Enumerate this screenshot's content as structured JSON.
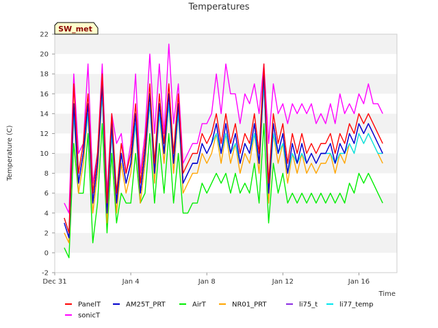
{
  "chart_data": {
    "type": "line",
    "title": "Temperatures",
    "xlabel": "Time",
    "ylabel": "Temperature (C)",
    "badge": "SW_met",
    "xlim": [
      "2023-12-31",
      "2024-01-18"
    ],
    "ylim": [
      -2,
      22
    ],
    "yticks": [
      -2,
      0,
      2,
      4,
      6,
      8,
      10,
      12,
      14,
      16,
      18,
      20,
      22
    ],
    "xticks": [
      {
        "date": "2023-12-31",
        "label": "Dec 31"
      },
      {
        "date": "2024-01-04",
        "label": "Jan 4"
      },
      {
        "date": "2024-01-08",
        "label": "Jan 8"
      },
      {
        "date": "2024-01-12",
        "label": "Jan 12"
      },
      {
        "date": "2024-01-16",
        "label": "Jan 16"
      }
    ],
    "grid": "horizontal bands",
    "legend_position": "bottom",
    "x": [
      "2023-12-31 12:00",
      "2023-12-31 18:00",
      "2024-01-01 00:00",
      "2024-01-01 06:00",
      "2024-01-01 12:00",
      "2024-01-01 18:00",
      "2024-01-02 00:00",
      "2024-01-02 06:00",
      "2024-01-02 12:00",
      "2024-01-02 18:00",
      "2024-01-03 00:00",
      "2024-01-03 06:00",
      "2024-01-03 12:00",
      "2024-01-03 18:00",
      "2024-01-04 00:00",
      "2024-01-04 06:00",
      "2024-01-04 12:00",
      "2024-01-04 18:00",
      "2024-01-05 00:00",
      "2024-01-05 06:00",
      "2024-01-05 12:00",
      "2024-01-05 18:00",
      "2024-01-06 00:00",
      "2024-01-06 06:00",
      "2024-01-06 12:00",
      "2024-01-06 18:00",
      "2024-01-07 00:00",
      "2024-01-07 06:00",
      "2024-01-07 12:00",
      "2024-01-07 18:00",
      "2024-01-08 00:00",
      "2024-01-08 06:00",
      "2024-01-08 12:00",
      "2024-01-08 18:00",
      "2024-01-09 00:00",
      "2024-01-09 06:00",
      "2024-01-09 12:00",
      "2024-01-09 18:00",
      "2024-01-10 00:00",
      "2024-01-10 06:00",
      "2024-01-10 12:00",
      "2024-01-10 18:00",
      "2024-01-11 00:00",
      "2024-01-11 06:00",
      "2024-01-11 12:00",
      "2024-01-11 18:00",
      "2024-01-12 00:00",
      "2024-01-12 06:00",
      "2024-01-12 12:00",
      "2024-01-12 18:00",
      "2024-01-13 00:00",
      "2024-01-13 06:00",
      "2024-01-13 12:00",
      "2024-01-13 18:00",
      "2024-01-14 00:00",
      "2024-01-14 06:00",
      "2024-01-14 12:00",
      "2024-01-14 18:00",
      "2024-01-15 00:00",
      "2024-01-15 06:00",
      "2024-01-15 12:00",
      "2024-01-15 18:00",
      "2024-01-16 00:00",
      "2024-01-16 06:00",
      "2024-01-16 12:00",
      "2024-01-16 18:00",
      "2024-01-17 00:00",
      "2024-01-17 06:00"
    ],
    "series": [
      {
        "name": "PanelT",
        "color": "#ff0000",
        "values": [
          3.5,
          2,
          17,
          8,
          11,
          16,
          6,
          10,
          18,
          5,
          14,
          6,
          11,
          8,
          10,
          15,
          7,
          11,
          17,
          9,
          16,
          11,
          17,
          10,
          16,
          8,
          9,
          10,
          10,
          12,
          11,
          12,
          14,
          11,
          14,
          11,
          13,
          10,
          12,
          11,
          14,
          10,
          19,
          7,
          14,
          11,
          13,
          9,
          12,
          10,
          12,
          10,
          11,
          10,
          11,
          11,
          12,
          10,
          12,
          11,
          13,
          12,
          14,
          13,
          14,
          13,
          12,
          11
        ]
      },
      {
        "name": "AM25T_PRT",
        "color": "#0000cc",
        "values": [
          3,
          1.5,
          15,
          7,
          10,
          15,
          5,
          9,
          17,
          4,
          13,
          5,
          10,
          7,
          9,
          14,
          6,
          10,
          16,
          8,
          15,
          10,
          16,
          9,
          15,
          7,
          8,
          9,
          9,
          11,
          10,
          11,
          13,
          10,
          13,
          10,
          12,
          9,
          11,
          10,
          13,
          9,
          18,
          6,
          13,
          10,
          12,
          8,
          11,
          9,
          11,
          9,
          10,
          9,
          10,
          10,
          11,
          9,
          11,
          10,
          12,
          11,
          13,
          12,
          13,
          12,
          11,
          10
        ]
      },
      {
        "name": "AirT",
        "color": "#00ee00",
        "values": [
          0.5,
          -0.5,
          11,
          6,
          6,
          12,
          1,
          5,
          13,
          2,
          10,
          3,
          6,
          5,
          5,
          10,
          5,
          6,
          12,
          5,
          11,
          6,
          12,
          5,
          10,
          4,
          4,
          5,
          5,
          7,
          6,
          7,
          8,
          7,
          8,
          6,
          8,
          6,
          7,
          6,
          9,
          5,
          13,
          3,
          9,
          6,
          8,
          5,
          6,
          5,
          6,
          5,
          6,
          5,
          6,
          5,
          6,
          5,
          6,
          5,
          7,
          6,
          8,
          7,
          8,
          7,
          6,
          5
        ]
      },
      {
        "name": "NR01_PRT",
        "color": "#ffa500",
        "values": [
          2,
          1,
          14,
          6,
          9,
          14,
          4,
          8,
          16,
          3,
          12,
          4,
          9,
          6,
          8,
          13,
          5,
          9,
          15,
          7,
          14,
          9,
          15,
          8,
          14,
          6,
          7,
          8,
          8,
          10,
          9,
          10,
          12,
          9,
          12,
          9,
          11,
          8,
          10,
          9,
          12,
          8,
          17,
          5,
          12,
          9,
          11,
          7,
          10,
          8,
          10,
          8,
          9,
          8,
          9,
          9,
          10,
          8,
          10,
          9,
          11,
          10,
          12,
          11,
          12,
          11,
          10,
          9
        ]
      },
      {
        "name": "li75_t",
        "color": "#8a2be2",
        "values": [
          3,
          1.5,
          15,
          7,
          10,
          15,
          5,
          9,
          17,
          4,
          13,
          5,
          10,
          7,
          9,
          14,
          6,
          10,
          16,
          8,
          15,
          10,
          16,
          9,
          15,
          7,
          8,
          9,
          9,
          11,
          10,
          11,
          13,
          10,
          13,
          10,
          12,
          9,
          11,
          10,
          13,
          9,
          18,
          6,
          13,
          10,
          12,
          8,
          11,
          9,
          11,
          9,
          10,
          9,
          10,
          10,
          11,
          9,
          11,
          10,
          12,
          11,
          13,
          12,
          13,
          12,
          11,
          10
        ]
      },
      {
        "name": "li77_temp",
        "color": "#00e5ee",
        "values": [
          3.5,
          2,
          14,
          7,
          10,
          14,
          5,
          9,
          16,
          4,
          12,
          5,
          10,
          7,
          9,
          13,
          6,
          10,
          15,
          8,
          14,
          10,
          15,
          9,
          14,
          7,
          8,
          9,
          9,
          11,
          10,
          11,
          12,
          10,
          12,
          10,
          11,
          9,
          11,
          10,
          12,
          9,
          17,
          6,
          12,
          10,
          11,
          8,
          10,
          9,
          10,
          9,
          10,
          9,
          10,
          10,
          10,
          9,
          10,
          10,
          11,
          10,
          12,
          11,
          12,
          11,
          10,
          10
        ]
      },
      {
        "name": "sonicT",
        "color": "#ff00ff",
        "values": [
          5,
          4,
          18,
          10,
          11,
          19,
          7,
          10,
          19,
          6,
          14,
          11,
          12,
          8,
          11,
          18,
          8,
          12,
          20,
          12,
          19,
          12,
          21,
          13,
          17,
          9,
          10,
          11,
          11,
          13,
          13,
          14,
          18,
          14,
          19,
          16,
          16,
          13,
          16,
          15,
          17,
          14,
          19,
          11,
          17,
          14,
          15,
          13,
          15,
          14,
          15,
          14,
          15,
          13,
          14,
          13,
          15,
          13,
          16,
          14,
          15,
          14,
          16,
          15,
          17,
          15,
          15,
          14
        ]
      }
    ]
  }
}
